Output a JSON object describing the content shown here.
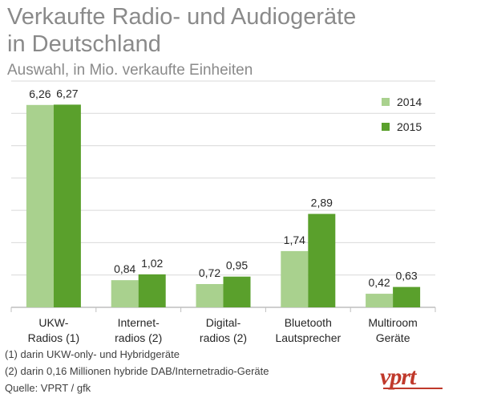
{
  "header": {
    "title_line1": "Verkaufte Radio- und Audiogeräte",
    "title_line2": "in Deutschland",
    "subtitle": "Auswahl, in Mio. verkaufte Einheiten"
  },
  "chart_data": {
    "type": "bar",
    "categories": [
      [
        "UKW-",
        "Radios (1)"
      ],
      [
        "Internet-",
        "radios (2)"
      ],
      [
        "Digital-",
        "radios (2)"
      ],
      [
        "Bluetooth",
        "Lautsprecher"
      ],
      [
        "Multiroom",
        "Geräte"
      ]
    ],
    "series": [
      {
        "name": "2014",
        "color": "#a9d18e",
        "values": [
          6.26,
          0.84,
          0.72,
          1.74,
          0.42
        ],
        "labels": [
          "6,26",
          "0,84",
          "0,72",
          "1,74",
          "0,42"
        ]
      },
      {
        "name": "2015",
        "color": "#5aa02c",
        "values": [
          6.27,
          1.02,
          0.95,
          2.89,
          0.63
        ],
        "labels": [
          "6,27",
          "1,02",
          "0,95",
          "2,89",
          "0,63"
        ]
      }
    ],
    "ylim": [
      0,
      7
    ],
    "grid": true,
    "legend": "top-right"
  },
  "footnotes": [
    "(1) darin UKW-only- und Hybridgeräte",
    "(2) darin 0,16 Millionen hybride DAB/Internetradio-Geräte",
    "Quelle: VPRT / gfk"
  ],
  "logo": {
    "text": "vprt",
    "color": "#c0392b"
  }
}
